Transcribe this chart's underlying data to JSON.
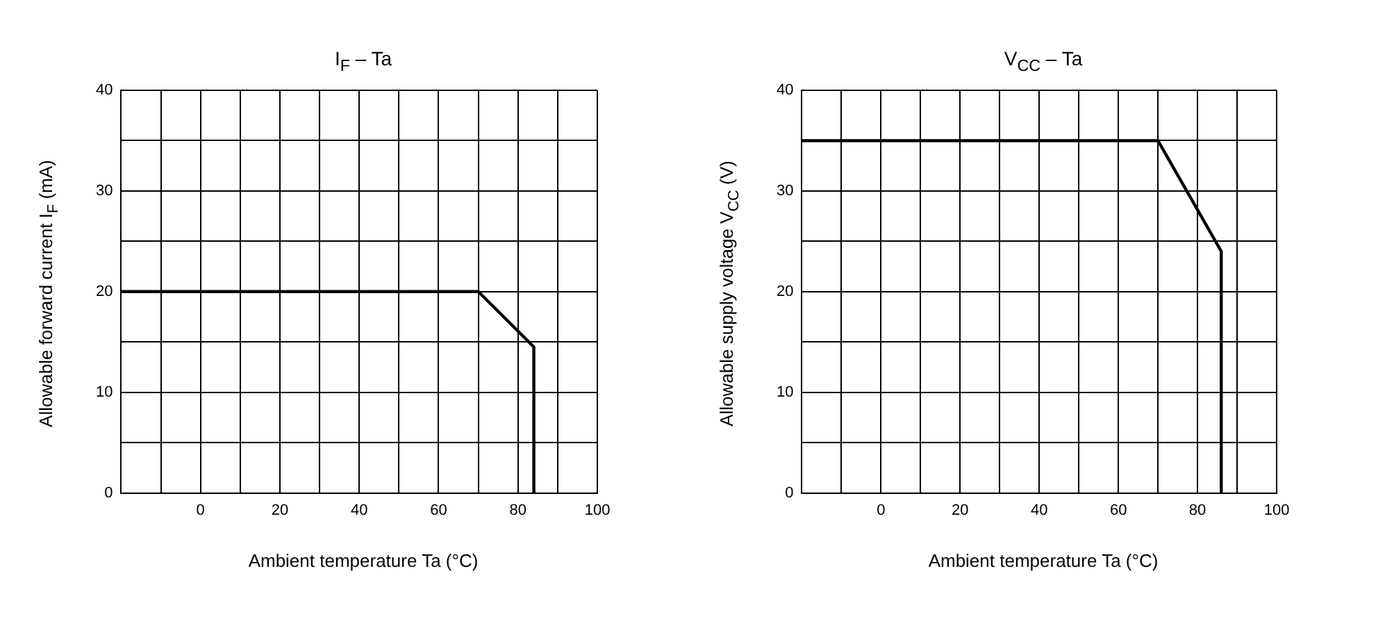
{
  "chart_data": [
    {
      "type": "line",
      "title": "I$_{F}$ – Ta",
      "xlabel": "Ambient temperature    Ta    (°C)",
      "ylabel": "Allowable forward current   I$_{F}$   (mA)",
      "grid": true,
      "legend": false,
      "marker": "none",
      "line_style": "solid",
      "series": [
        {
          "color": "#000000",
          "x": [
            -20,
            70,
            84,
            84
          ],
          "values": [
            20,
            20,
            14.5,
            0
          ]
        }
      ],
      "xlim": [
        -20,
        100
      ],
      "xticks": [
        {
          "value": -20,
          "label": null
        },
        {
          "value": -10,
          "label": null
        },
        0,
        {
          "value": 10,
          "label": null
        },
        20,
        {
          "value": 30,
          "label": null
        },
        40,
        {
          "value": 50,
          "label": null
        },
        60,
        {
          "value": 70,
          "label": null
        },
        80,
        {
          "value": 90,
          "label": null
        },
        100
      ],
      "ylim": [
        0,
        40
      ],
      "yticks": [
        0,
        {
          "value": 5,
          "label": null
        },
        10,
        {
          "value": 15,
          "label": null
        },
        20,
        {
          "value": 25,
          "label": null
        },
        30,
        {
          "value": 35,
          "label": null
        },
        40
      ]
    },
    {
      "type": "line",
      "title": "V$_{CC}$ – Ta",
      "xlabel": "Ambient temperature    Ta    (°C)",
      "ylabel": "Allowable supply voltage   V$_{CC}$   (V)",
      "grid": true,
      "legend": false,
      "marker": "none",
      "line_style": "solid",
      "series": [
        {
          "color": "#000000",
          "x": [
            -20,
            70,
            86,
            86
          ],
          "values": [
            35,
            35,
            24,
            0
          ]
        }
      ],
      "xlim": [
        -20,
        100
      ],
      "xticks": [
        {
          "value": -20,
          "label": null
        },
        {
          "value": -10,
          "label": null
        },
        0,
        {
          "value": 10,
          "label": null
        },
        20,
        {
          "value": 30,
          "label": null
        },
        40,
        {
          "value": 50,
          "label": null
        },
        60,
        {
          "value": 70,
          "label": null
        },
        80,
        {
          "value": 90,
          "label": null
        },
        100
      ],
      "ylim": [
        0,
        40
      ],
      "yticks": [
        0,
        {
          "value": 5,
          "label": null
        },
        10,
        {
          "value": 15,
          "label": null
        },
        20,
        {
          "value": 25,
          "label": null
        },
        30,
        {
          "value": 35,
          "label": null
        },
        40
      ]
    }
  ]
}
